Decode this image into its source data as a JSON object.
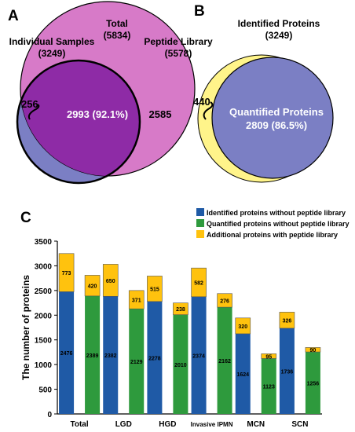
{
  "panels": {
    "a": {
      "letter": "A",
      "total_label": "Total",
      "total_count": "(5834)",
      "individual_label": "Individual Samples",
      "individual_count": "(3249)",
      "library_label": "Peptide Library",
      "library_count": "(5578)",
      "only_individual": "256",
      "overlap": "2993 (92.1%)",
      "only_library": "2585"
    },
    "b": {
      "letter": "B",
      "identified_label": "Identified Proteins",
      "identified_count": "(3249)",
      "only_identified": "440",
      "quantified_label": "Quantified Proteins",
      "quantified_value": "2809 (86.5%)"
    },
    "c": {
      "letter": "C"
    }
  },
  "colors": {
    "individual_circle": "#7B7FC4",
    "library_circle": "#D77AC8",
    "overlap": "#8E2BA6",
    "identified_circle": "#FFF48A",
    "quantified_circle": "#7B7FC4",
    "series_identified": "#1F5AA6",
    "series_quantified": "#2E9A3D",
    "series_additional": "#FFC20E"
  },
  "chart_data": {
    "type": "bar",
    "stacked": true,
    "ylabel": "The number of proteins",
    "xlabel": "",
    "ylim": [
      0,
      3500
    ],
    "yticks": [
      0,
      500,
      1000,
      1500,
      2000,
      2500,
      3000,
      3500
    ],
    "groups": [
      "Total",
      "LGD",
      "HGD",
      "Invasive IPMN",
      "MCN",
      "SCN"
    ],
    "series": [
      {
        "name": "Identified proteins without peptide library",
        "color_key": "series_identified"
      },
      {
        "name": "Quantified proteins without peptide library",
        "color_key": "series_quantified"
      },
      {
        "name": "Additional proteins with peptide library",
        "color_key": "series_additional"
      }
    ],
    "bars": [
      {
        "group": 0,
        "kind": "identified",
        "base": 2476,
        "additional": 773
      },
      {
        "group": 0,
        "kind": "quantified",
        "base": 2389,
        "additional": 420
      },
      {
        "group": 1,
        "kind": "identified",
        "base": 2382,
        "additional": 650
      },
      {
        "group": 1,
        "kind": "quantified",
        "base": 2129,
        "additional": 371
      },
      {
        "group": 2,
        "kind": "identified",
        "base": 2278,
        "additional": 515
      },
      {
        "group": 2,
        "kind": "quantified",
        "base": 2010,
        "additional": 238
      },
      {
        "group": 3,
        "kind": "identified",
        "base": 2374,
        "additional": 582
      },
      {
        "group": 3,
        "kind": "quantified",
        "base": 2162,
        "additional": 276
      },
      {
        "group": 4,
        "kind": "identified",
        "base": 1624,
        "additional": 320
      },
      {
        "group": 4,
        "kind": "quantified",
        "base": 1123,
        "additional": 95
      },
      {
        "group": 5,
        "kind": "identified",
        "base": 1736,
        "additional": 326
      },
      {
        "group": 5,
        "kind": "quantified",
        "base": 1256,
        "additional": 90
      }
    ]
  }
}
